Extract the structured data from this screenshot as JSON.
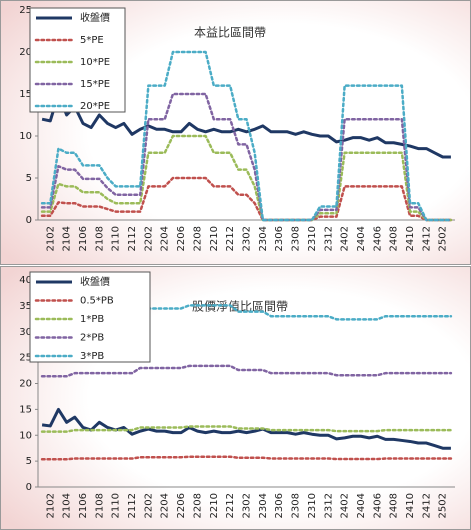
{
  "chart_data": [
    {
      "type": "line",
      "title": "本益比區間帶",
      "categories": [
        null,
        "2102",
        null,
        "2104",
        null,
        "2106",
        null,
        "2108",
        null,
        "2110",
        null,
        "2112",
        null,
        "2202",
        null,
        "2204",
        null,
        "2206",
        null,
        "2208",
        null,
        "2210",
        null,
        "2212",
        null,
        "2302",
        null,
        "2304",
        null,
        "2306",
        null,
        "2308",
        null,
        "2310",
        null,
        "2312",
        null,
        "2402",
        null,
        "2404",
        null,
        "2406",
        null,
        "2408",
        null,
        "2410",
        null,
        "2412",
        null,
        "2502",
        null
      ],
      "ylim": [
        0,
        25
      ],
      "yticks": [
        0,
        5,
        10,
        15,
        20,
        25
      ],
      "series": [
        {
          "name": "收盤價",
          "color": "#1f3864",
          "style": "solid",
          "values": [
            12,
            11.8,
            15,
            12.5,
            13.5,
            11.5,
            11,
            12.5,
            11.5,
            11,
            11.5,
            10.2,
            10.8,
            11.2,
            10.8,
            10.8,
            10.5,
            10.5,
            11.5,
            10.8,
            10.5,
            10.8,
            10.5,
            10.5,
            10.8,
            10.5,
            10.8,
            11.2,
            10.5,
            10.5,
            10.5,
            10.2,
            10.5,
            10.2,
            10,
            10,
            9.3,
            9.5,
            9.8,
            9.8,
            9.5,
            9.8,
            9.2,
            9.2,
            9,
            8.8,
            8.5,
            8.5,
            8,
            7.5,
            7.5
          ]
        },
        {
          "name": "5*PE",
          "color": "#c0504d",
          "style": "dotted",
          "values": [
            0.5,
            0.5,
            2.1,
            2,
            2,
            1.6,
            1.6,
            1.6,
            1.3,
            1,
            1,
            1,
            1,
            4,
            4,
            4,
            5,
            5,
            5,
            5,
            5,
            4,
            4,
            4,
            3,
            3,
            2,
            0,
            0,
            0,
            0,
            0,
            0,
            0,
            0.4,
            0.4,
            0.4,
            4,
            4,
            4,
            4,
            4,
            4,
            4,
            4,
            0.5,
            0.5,
            0,
            0,
            0,
            0
          ]
        },
        {
          "name": "10*PE",
          "color": "#9bbb59",
          "style": "dotted",
          "values": [
            1,
            1,
            4.3,
            4,
            4,
            3.3,
            3.3,
            3.3,
            2.5,
            2,
            2,
            2,
            2,
            8,
            8,
            8,
            10,
            10,
            10,
            10,
            10,
            8,
            8,
            8,
            6,
            6,
            4,
            0,
            0,
            0,
            0,
            0,
            0,
            0,
            0.8,
            0.8,
            0.8,
            8,
            8,
            8,
            8,
            8,
            8,
            8,
            8,
            1,
            1,
            0,
            0,
            0,
            0
          ]
        },
        {
          "name": "15*PE",
          "color": "#8064a2",
          "style": "dotted",
          "values": [
            1.5,
            1.5,
            6.4,
            6,
            6,
            4.9,
            4.9,
            4.9,
            3.8,
            3,
            3,
            3,
            3,
            12,
            12,
            12,
            15,
            15,
            15,
            15,
            15,
            12,
            12,
            12,
            9,
            9,
            6,
            0,
            0,
            0,
            0,
            0,
            0,
            0,
            1.2,
            1.2,
            1.2,
            12,
            12,
            12,
            12,
            12,
            12,
            12,
            12,
            1.5,
            1.5,
            0,
            0,
            0,
            0
          ]
        },
        {
          "name": "20*PE",
          "color": "#4bacc6",
          "style": "dotted",
          "values": [
            2,
            2,
            8.5,
            8,
            8,
            6.5,
            6.5,
            6.5,
            5,
            4,
            4,
            4,
            4,
            16,
            16,
            16,
            20,
            20,
            20,
            20,
            20,
            16,
            16,
            16,
            12,
            12,
            8,
            0,
            0,
            0,
            0,
            0,
            0,
            0,
            1.6,
            1.6,
            1.6,
            16,
            16,
            16,
            16,
            16,
            16,
            16,
            16,
            2,
            2,
            0,
            0,
            0,
            0
          ]
        }
      ]
    },
    {
      "type": "line",
      "title": "股價淨值比區間帶",
      "categories": [
        null,
        "2102",
        null,
        "2104",
        null,
        "2106",
        null,
        "2108",
        null,
        "2110",
        null,
        "2112",
        null,
        "2202",
        null,
        "2204",
        null,
        "2206",
        null,
        "2208",
        null,
        "2210",
        null,
        "2212",
        null,
        "2302",
        null,
        "2304",
        null,
        "2306",
        null,
        "2308",
        null,
        "2310",
        null,
        "2312",
        null,
        "2402",
        null,
        "2404",
        null,
        "2406",
        null,
        "2408",
        null,
        "2410",
        null,
        "2412",
        null,
        "2502",
        null
      ],
      "ylim": [
        0,
        40
      ],
      "yticks": [
        0,
        5,
        10,
        15,
        20,
        25,
        30,
        35,
        40
      ],
      "series": [
        {
          "name": "收盤價",
          "color": "#1f3864",
          "style": "solid",
          "values": [
            12,
            11.8,
            15,
            12.5,
            13.5,
            11.5,
            11,
            12.5,
            11.5,
            11,
            11.5,
            10.2,
            10.8,
            11.2,
            10.8,
            10.8,
            10.5,
            10.5,
            11.5,
            10.8,
            10.5,
            10.8,
            10.5,
            10.5,
            10.8,
            10.5,
            10.8,
            11.2,
            10.5,
            10.5,
            10.5,
            10.2,
            10.5,
            10.2,
            10,
            10,
            9.3,
            9.5,
            9.8,
            9.8,
            9.5,
            9.8,
            9.2,
            9.2,
            9,
            8.8,
            8.5,
            8.5,
            8,
            7.5,
            7.5
          ]
        },
        {
          "name": "0.5*PB",
          "color": "#c0504d",
          "style": "dotted",
          "values": [
            5.35,
            5.35,
            5.35,
            5.35,
            5.5,
            5.5,
            5.5,
            5.5,
            5.5,
            5.5,
            5.5,
            5.5,
            5.75,
            5.75,
            5.75,
            5.75,
            5.75,
            5.75,
            5.85,
            5.85,
            5.85,
            5.85,
            5.85,
            5.85,
            5.65,
            5.65,
            5.65,
            5.65,
            5.5,
            5.5,
            5.5,
            5.5,
            5.5,
            5.5,
            5.5,
            5.5,
            5.4,
            5.4,
            5.4,
            5.4,
            5.4,
            5.4,
            5.5,
            5.5,
            5.5,
            5.5,
            5.5,
            5.5,
            5.5,
            5.5,
            5.5
          ]
        },
        {
          "name": "1*PB",
          "color": "#9bbb59",
          "style": "dotted",
          "values": [
            10.7,
            10.7,
            10.7,
            10.7,
            11,
            11,
            11,
            11,
            11,
            11,
            11,
            11,
            11.5,
            11.5,
            11.5,
            11.5,
            11.5,
            11.5,
            11.7,
            11.7,
            11.7,
            11.7,
            11.7,
            11.7,
            11.3,
            11.3,
            11.3,
            11.3,
            11,
            11,
            11,
            11,
            11,
            11,
            11,
            11,
            10.8,
            10.8,
            10.8,
            10.8,
            10.8,
            10.8,
            11,
            11,
            11,
            11,
            11,
            11,
            11,
            11,
            11
          ]
        },
        {
          "name": "2*PB",
          "color": "#8064a2",
          "style": "dotted",
          "values": [
            21.4,
            21.4,
            21.4,
            21.4,
            22,
            22,
            22,
            22,
            22,
            22,
            22,
            22,
            23,
            23,
            23,
            23,
            23,
            23,
            23.4,
            23.4,
            23.4,
            23.4,
            23.4,
            23.4,
            22.6,
            22.6,
            22.6,
            22.6,
            22,
            22,
            22,
            22,
            22,
            22,
            22,
            22,
            21.6,
            21.6,
            21.6,
            21.6,
            21.6,
            21.6,
            22,
            22,
            22,
            22,
            22,
            22,
            22,
            22,
            22
          ]
        },
        {
          "name": "3*PB",
          "color": "#4bacc6",
          "style": "dotted",
          "values": [
            32.1,
            32.1,
            32.1,
            32.1,
            33,
            33,
            33,
            33,
            33,
            33,
            33,
            33,
            34.5,
            34.5,
            34.5,
            34.5,
            34.5,
            34.5,
            35.1,
            35.1,
            35.1,
            35.1,
            35.1,
            35.1,
            33.9,
            33.9,
            33.9,
            33.9,
            33,
            33,
            33,
            33,
            33,
            33,
            33,
            33,
            32.4,
            32.4,
            32.4,
            32.4,
            32.4,
            32.4,
            33,
            33,
            33,
            33,
            33,
            33,
            33,
            33,
            33
          ]
        }
      ]
    }
  ]
}
